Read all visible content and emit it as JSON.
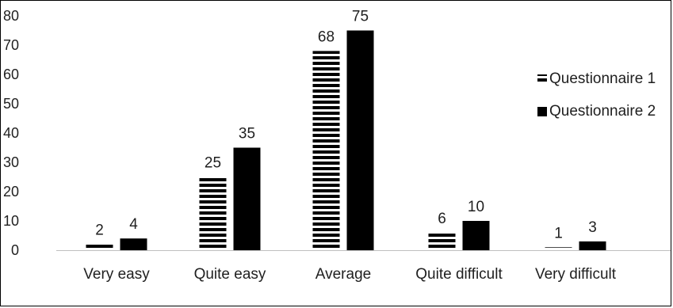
{
  "chart_data": {
    "type": "bar",
    "categories": [
      "Very easy",
      "Quite easy",
      "Average",
      "Quite difficult",
      "Very difficult"
    ],
    "series": [
      {
        "name": "Questionnaire 1",
        "values": [
          2,
          25,
          68,
          6,
          1
        ],
        "pattern": "horizontal-stripes",
        "color": "#000000"
      },
      {
        "name": "Questionnaire 2",
        "values": [
          4,
          35,
          75,
          10,
          3
        ],
        "pattern": "solid",
        "color": "#000000"
      }
    ],
    "title": "",
    "xlabel": "",
    "ylabel": "",
    "ylim": [
      0,
      80
    ],
    "yticks": [
      0,
      10,
      20,
      30,
      40,
      50,
      60,
      70,
      80
    ],
    "grid": false,
    "legend": "right"
  }
}
